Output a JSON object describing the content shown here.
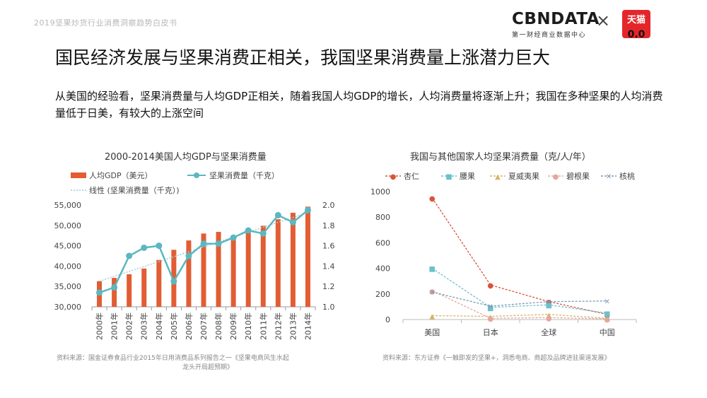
{
  "header": {
    "report_caption": "2019坚果炒货行业消费洞察趋势白皮书",
    "logo_text": "CBNDATA",
    "logo_subtitle": "第一财经商业数据中心",
    "times_symbol": "×",
    "partner_logo_text": "天猫",
    "partner_logo_eyes": "0.0"
  },
  "page": {
    "title": "国民经济发展与坚果消费正相关，我国坚果消费量上涨潜力巨大",
    "subtitle": "从美国的经验看，坚果消费量与人均GDP正相关，随着我国人均GDP的增长，人均消费量将逐渐上升；我国在多种坚果的人均消费量低于日美，有较大的上涨空间"
  },
  "colors": {
    "bar": "#e25d33",
    "line": "#5bb7c0",
    "almond": "#d9533a",
    "cashew": "#6cc1c9",
    "hazelnut": "#d9b26a",
    "pecan": "#e5a79a",
    "walnut": "#7a9ab7"
  },
  "chart_data": [
    {
      "type": "bar+line",
      "title": "2000-2014美国人均GDP与坚果消费量",
      "categories": [
        "2000年",
        "2001年",
        "2002年",
        "2003年",
        "2004年",
        "2005年",
        "2006年",
        "2007年",
        "2008年",
        "2009年",
        "2010年",
        "2011年",
        "2012年",
        "2013年",
        "2014年"
      ],
      "series": [
        {
          "name": "人均GDP（美元）",
          "type": "bar",
          "axis": "left",
          "values": [
            36300,
            37100,
            38000,
            39400,
            41500,
            44000,
            46300,
            48000,
            48400,
            47100,
            48500,
            49900,
            51500,
            53100,
            54600
          ]
        },
        {
          "name": "坚果消费量（千克）",
          "type": "line",
          "axis": "right",
          "values": [
            1.14,
            1.19,
            1.5,
            1.58,
            1.6,
            1.25,
            1.5,
            1.62,
            1.62,
            1.68,
            1.75,
            1.72,
            1.9,
            1.83,
            1.95
          ]
        },
        {
          "name": "线性 (坚果消费量（千克）)",
          "type": "trendline",
          "axis": "right"
        }
      ],
      "y_left": {
        "ylim": [
          30000,
          55000
        ],
        "ticks": [
          "30,000",
          "35,000",
          "40,000",
          "45,000",
          "50,000",
          "55,000"
        ],
        "tick_values": [
          30000,
          35000,
          40000,
          45000,
          50000,
          55000
        ]
      },
      "y_right": {
        "ylim": [
          1.0,
          2.0
        ],
        "ticks": [
          "1.0",
          "1.2",
          "1.4",
          "1.6",
          "1.8",
          "2.0"
        ],
        "tick_values": [
          1.0,
          1.2,
          1.4,
          1.6,
          1.8,
          2.0
        ]
      },
      "source": [
        "资料来源：国金证券食品行业2015年日用消费品系列报告之一《坚果电商风生水起",
        "龙头开局超预期》"
      ]
    },
    {
      "type": "line",
      "title": "我国与其他国家人均坚果消费量（克/人/年）",
      "categories": [
        "美国",
        "日本",
        "全球",
        "中国"
      ],
      "series": [
        {
          "name": "杏仁",
          "marker": "●",
          "values": [
            950,
            270,
            140,
            40
          ]
        },
        {
          "name": "腰果",
          "marker": "■",
          "values": [
            400,
            95,
            115,
            50
          ]
        },
        {
          "name": "夏威夷果",
          "marker": "▲",
          "values": [
            30,
            25,
            40,
            10
          ]
        },
        {
          "name": "碧根果",
          "marker": "●",
          "values": [
            225,
            10,
            15,
            5
          ]
        },
        {
          "name": "核桃",
          "marker": "✕",
          "values": [
            215,
            105,
            140,
            145
          ]
        }
      ],
      "ylim": [
        0,
        1000
      ],
      "ticks": [
        "0",
        "200",
        "400",
        "600",
        "800",
        "1000"
      ],
      "tick_values": [
        0,
        200,
        400,
        600,
        800,
        1000
      ],
      "source": [
        "资料来源：东方证券《一触即发的坚果+，洞悉电商、商超及品牌进驻渠道发展》"
      ]
    }
  ]
}
